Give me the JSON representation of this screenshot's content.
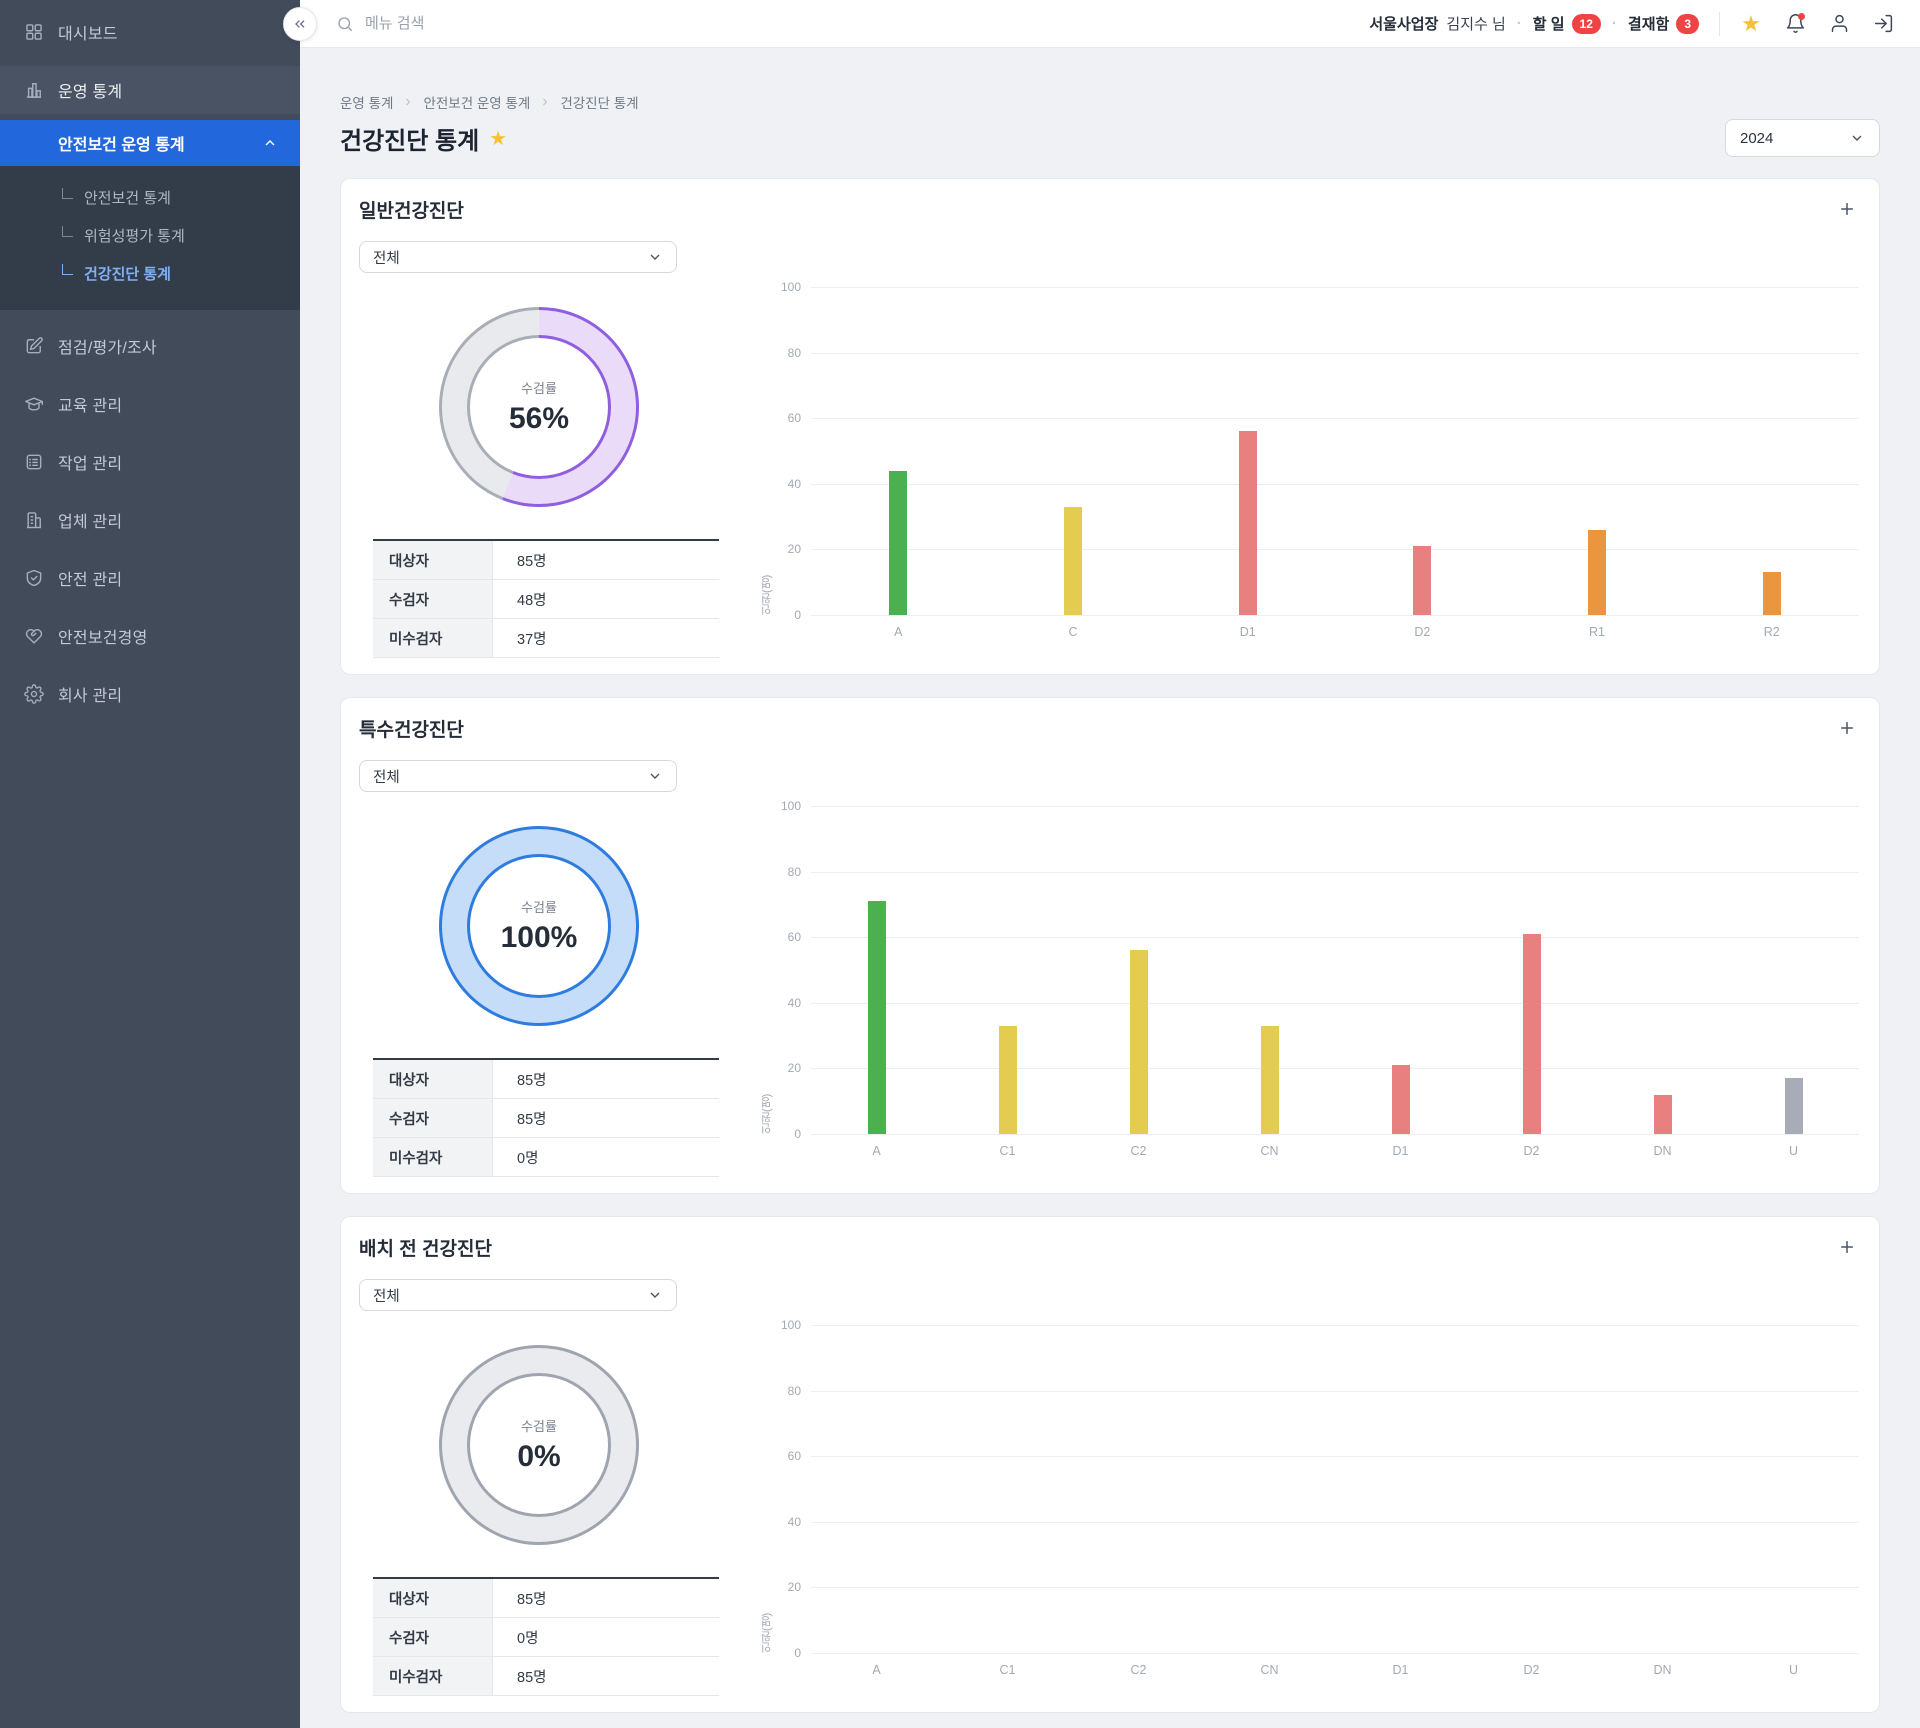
{
  "sidebar": {
    "dashboard": "대시보드",
    "operation_stats": "운영 통계",
    "active_group": "안전보건 운영 통계",
    "submenu": [
      {
        "label": "안전보건 통계"
      },
      {
        "label": "위험성평가 통계"
      },
      {
        "label": "건강진단 통계"
      }
    ],
    "items": [
      {
        "label": "점검/평가/조사"
      },
      {
        "label": "교육 관리"
      },
      {
        "label": "작업 관리"
      },
      {
        "label": "업체 관리"
      },
      {
        "label": "안전 관리"
      },
      {
        "label": "안전보건경영"
      },
      {
        "label": "회사 관리"
      }
    ]
  },
  "topbar": {
    "search_placeholder": "메뉴 검색",
    "site": "서울사업장",
    "user": "김지수 님",
    "dot": "·",
    "todo_label": "할 일",
    "todo_count": "12",
    "approval_label": "결재함",
    "approval_count": "3"
  },
  "page": {
    "breadcrumb": [
      "운영 통계",
      "안전보건 운영 통계",
      "건강진단 통계"
    ],
    "title": "건강진단 통계",
    "year": "2024"
  },
  "colors": {
    "accent_blue": "#2268DC",
    "badge_red": "#EF4444",
    "star_yellow": "#F6C134",
    "bar_green": "#4CAF50",
    "bar_yellow": "#E3CC4F",
    "bar_salmon": "#E98080",
    "bar_orange": "#E9963F",
    "bar_gray": "#A7ACB6"
  },
  "cards": [
    {
      "title": "일반건강진단",
      "filter": "전체",
      "donut": {
        "label": "수검률",
        "percent": 56,
        "percent_label": "56%",
        "edge": "#8F5FE0",
        "fill": "#EADCF8",
        "rest_edge": "#A9AEB6",
        "rest_fill": "#E8EAED"
      },
      "table": {
        "rows": [
          {
            "label": "대상자",
            "value": "85명"
          },
          {
            "label": "수검자",
            "value": "48명"
          },
          {
            "label": "미수검자",
            "value": "37명"
          }
        ]
      }
    },
    {
      "title": "특수건강진단",
      "filter": "전체",
      "donut": {
        "label": "수검률",
        "percent": 100,
        "percent_label": "100%",
        "edge": "#2E7CDF",
        "fill": "#C5DDF8",
        "rest_edge": "#A9AEB6",
        "rest_fill": "#E8EAED"
      },
      "table": {
        "rows": [
          {
            "label": "대상자",
            "value": "85명"
          },
          {
            "label": "수검자",
            "value": "85명"
          },
          {
            "label": "미수검자",
            "value": "0명"
          }
        ]
      }
    },
    {
      "title": "배치 전 건강진단",
      "filter": "전체",
      "donut": {
        "label": "수검률",
        "percent": 0,
        "percent_label": "0%",
        "edge": "#9EA5AF",
        "fill": "#E9EBEE",
        "rest_edge": "#9EA5AF",
        "rest_fill": "#E9EBEE"
      },
      "table": {
        "rows": [
          {
            "label": "대상자",
            "value": "85명"
          },
          {
            "label": "수검자",
            "value": "0명"
          },
          {
            "label": "미수검자",
            "value": "85명"
          }
        ]
      }
    }
  ],
  "chart_data": [
    {
      "type": "bar",
      "title": "일반건강진단",
      "ylabel": "인원(명)",
      "ylim": [
        0,
        100
      ],
      "yticks": [
        0,
        20,
        40,
        60,
        80,
        100
      ],
      "grid": true,
      "categories": [
        "A",
        "C",
        "D1",
        "D2",
        "R1",
        "R2"
      ],
      "values": [
        44,
        33,
        56,
        21,
        26,
        13
      ],
      "colors": [
        "#4CAF50",
        "#E3CC4F",
        "#E98080",
        "#E98080",
        "#E9963F",
        "#E9963F"
      ]
    },
    {
      "type": "bar",
      "title": "특수건강진단",
      "ylabel": "인원(명)",
      "ylim": [
        0,
        100
      ],
      "yticks": [
        0,
        20,
        40,
        60,
        80,
        100
      ],
      "grid": true,
      "categories": [
        "A",
        "C1",
        "C2",
        "CN",
        "D1",
        "D2",
        "DN",
        "U"
      ],
      "values": [
        71,
        33,
        56,
        33,
        21,
        61,
        12,
        17
      ],
      "colors": [
        "#4CAF50",
        "#E3CC4F",
        "#E3CC4F",
        "#E3CC4F",
        "#E98080",
        "#E98080",
        "#E98080",
        "#A7ACB6"
      ]
    },
    {
      "type": "bar",
      "title": "배치 전 건강진단",
      "ylabel": "인원(명)",
      "ylim": [
        0,
        100
      ],
      "yticks": [
        0,
        20,
        40,
        60,
        80,
        100
      ],
      "grid": true,
      "categories": [
        "A",
        "C1",
        "C2",
        "CN",
        "D1",
        "D2",
        "DN",
        "U"
      ],
      "values": [
        0,
        0,
        0,
        0,
        0,
        0,
        0,
        0
      ],
      "colors": [
        "#4CAF50",
        "#E3CC4F",
        "#E3CC4F",
        "#E3CC4F",
        "#E98080",
        "#E98080",
        "#E98080",
        "#A7ACB6"
      ]
    }
  ]
}
